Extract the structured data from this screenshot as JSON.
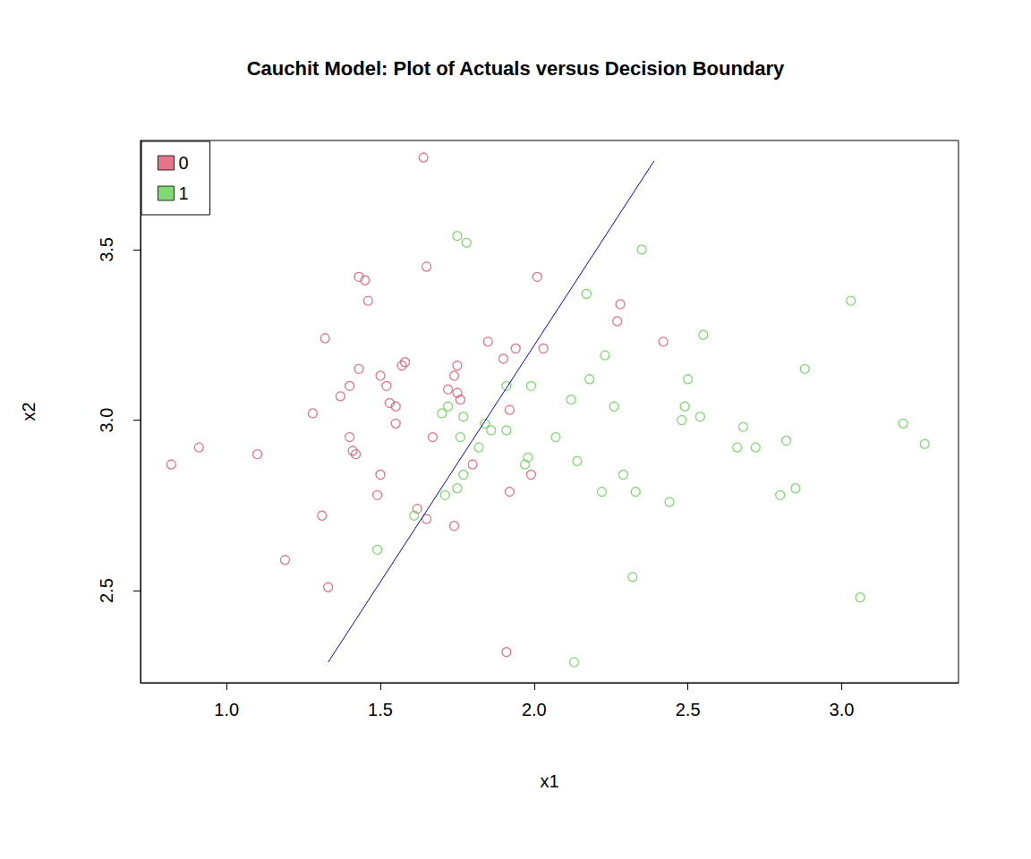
{
  "chart_data": {
    "type": "scatter",
    "title": "Cauchit Model: Plot of Actuals versus Decision Boundary",
    "x_label": "x1",
    "y_label": "x2",
    "xlim": [
      0.72,
      3.38
    ],
    "ylim": [
      2.23,
      3.82
    ],
    "xticks": [
      {
        "value": 1,
        "label": "1.0"
      },
      1.5,
      {
        "value": 2,
        "label": "2.0"
      },
      2.5,
      {
        "value": 3,
        "label": "3.0"
      }
    ],
    "yticks": [
      2.5,
      {
        "value": 3,
        "label": "3.0"
      },
      3.5
    ],
    "grid": false,
    "legend": "top-left",
    "series": [
      {
        "name": "0",
        "type": "scatter",
        "marker": "open_circle",
        "color": "#DF536B",
        "x": [
          0.82,
          0.91,
          1.1,
          1.19,
          1.28,
          1.31,
          1.32,
          1.33,
          1.37,
          1.4,
          1.4,
          1.41,
          1.42,
          1.43,
          1.43,
          1.45,
          1.46,
          1.49,
          1.5,
          1.5,
          1.52,
          1.53,
          1.55,
          1.55,
          1.57,
          1.58,
          1.62,
          1.64,
          1.65,
          1.65,
          1.67,
          1.72,
          1.74,
          1.74,
          1.75,
          1.75,
          1.76,
          1.8,
          1.85,
          1.9,
          1.92,
          1.92,
          1.91,
          1.94,
          1.99,
          2.01,
          2.03,
          2.27,
          2.28,
          2.42
        ],
        "values": [
          2.87,
          2.92,
          2.9,
          2.59,
          3.02,
          2.72,
          3.24,
          2.51,
          3.07,
          3.1,
          2.95,
          2.91,
          2.9,
          3.42,
          3.15,
          3.41,
          3.35,
          2.78,
          3.13,
          2.84,
          3.1,
          3.05,
          3.04,
          2.99,
          3.16,
          3.17,
          2.74,
          3.77,
          3.45,
          2.71,
          2.95,
          3.09,
          3.13,
          2.69,
          3.16,
          3.08,
          3.06,
          2.87,
          3.23,
          3.18,
          3.03,
          2.79,
          2.32,
          3.21,
          2.84,
          3.42,
          3.21,
          3.29,
          3.34,
          3.23
        ]
      },
      {
        "name": "1",
        "type": "scatter",
        "marker": "open_circle",
        "color": "#61D04F",
        "x": [
          1.49,
          1.61,
          1.7,
          1.71,
          1.72,
          1.75,
          1.75,
          1.76,
          1.77,
          1.77,
          1.78,
          1.82,
          1.84,
          1.86,
          1.91,
          1.91,
          1.97,
          1.98,
          1.99,
          2.07,
          2.12,
          2.13,
          2.14,
          2.17,
          2.18,
          2.22,
          2.23,
          2.26,
          2.29,
          2.33,
          2.32,
          2.35,
          2.44,
          2.48,
          2.49,
          2.5,
          2.54,
          2.55,
          2.66,
          2.68,
          2.72,
          2.8,
          2.82,
          2.85,
          2.88,
          3.03,
          3.06,
          3.2,
          3.27
        ],
        "values": [
          2.62,
          2.72,
          3.02,
          2.78,
          3.04,
          3.54,
          2.8,
          2.95,
          2.84,
          3.01,
          3.52,
          2.92,
          2.99,
          2.97,
          3.1,
          2.97,
          2.87,
          2.89,
          3.1,
          2.95,
          3.06,
          2.29,
          2.88,
          3.37,
          3.12,
          2.79,
          3.19,
          3.04,
          2.84,
          2.79,
          2.54,
          3.5,
          2.76,
          3.0,
          3.04,
          3.12,
          3.01,
          3.25,
          2.92,
          2.98,
          2.92,
          2.78,
          2.94,
          2.8,
          3.15,
          3.35,
          2.48,
          2.99,
          2.93
        ]
      },
      {
        "type": "line",
        "line_style": "solid",
        "color": "blue",
        "x": [
          1.33,
          2.39
        ],
        "values": [
          2.29,
          3.76
        ]
      }
    ]
  }
}
